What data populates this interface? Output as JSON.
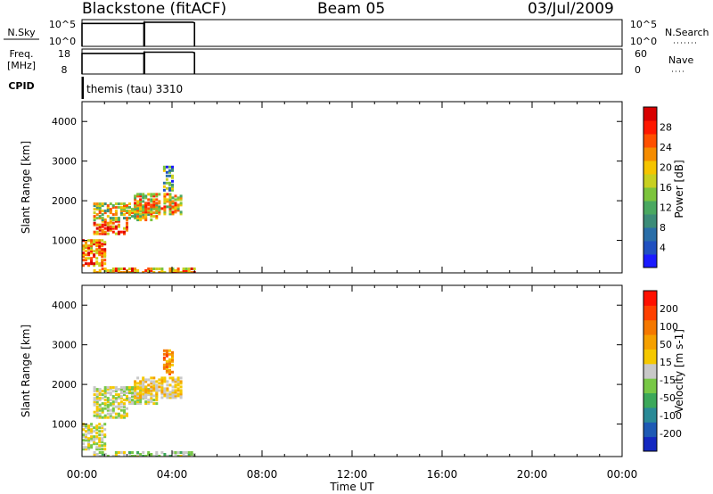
{
  "header": {
    "station": "Blackstone (fitACF)",
    "beam": "Beam 05",
    "date": "03/Jul/2009"
  },
  "chart_data": [
    {
      "type": "line",
      "panel": "noise",
      "left_label": "N.Sky",
      "right_label": "N.Search",
      "left_ticks": [
        "10^5",
        "10^0"
      ],
      "right_ticks": [
        "10^5",
        "10^0"
      ],
      "xlim": [
        0,
        24
      ],
      "coverage_hours": [
        [
          0.0,
          2.75
        ],
        [
          2.78,
          5.0
        ]
      ],
      "level": 0.88
    },
    {
      "type": "line",
      "panel": "frequency",
      "left_label": "Freq.",
      "left_unit": "[MHz]",
      "right_label": "Nave",
      "left_ticks": [
        "18",
        "8"
      ],
      "right_ticks": [
        "60",
        "0"
      ],
      "xlim": [
        0,
        24
      ],
      "coverage_hours": [
        [
          0.0,
          2.75
        ],
        [
          2.78,
          5.0
        ]
      ],
      "level": 0.85
    },
    {
      "type": "table",
      "panel": "cpid",
      "label": "CPID",
      "text": "themis (tau) 3310"
    },
    {
      "type": "heatmap",
      "panel": "power",
      "ylabel": "Slant Range [km]",
      "ylim": [
        180,
        4500
      ],
      "yticks": [
        "1000",
        "2000",
        "3000",
        "4000"
      ],
      "xlim": [
        0,
        24
      ],
      "colorbar": {
        "label": "Power [dB]",
        "ticks": [
          "28",
          "24",
          "20",
          "16",
          "12",
          "8",
          "4"
        ],
        "colors": [
          "#1a1aff",
          "#2050c0",
          "#2a6ea8",
          "#3c8c78",
          "#4aa860",
          "#7cc43c",
          "#c8d020",
          "#f5c400",
          "#f58c00",
          "#ff5000",
          "#ff1800",
          "#d80000"
        ]
      },
      "regions": [
        {
          "t": [
            0.0,
            1.0
          ],
          "r": [
            400,
            1050
          ],
          "level": 0.75
        },
        {
          "t": [
            0.5,
            2.0
          ],
          "r": [
            1200,
            1550
          ],
          "level": 0.8
        },
        {
          "t": [
            0.5,
            3.3
          ],
          "r": [
            1550,
            2000
          ],
          "level": 0.55
        },
        {
          "t": [
            2.3,
            4.4
          ],
          "r": [
            1700,
            2200
          ],
          "level": 0.62
        },
        {
          "t": [
            3.6,
            4.0
          ],
          "r": [
            2300,
            2900
          ],
          "level": 0.35
        },
        {
          "t": [
            0.5,
            5.0
          ],
          "r": [
            180,
            350
          ],
          "level": 0.7
        }
      ]
    },
    {
      "type": "heatmap",
      "panel": "velocity",
      "ylabel": "Slant Range [km]",
      "ylim": [
        180,
        4500
      ],
      "yticks": [
        "1000",
        "2000",
        "3000",
        "4000"
      ],
      "xlim": [
        0,
        24
      ],
      "xticks": [
        "00:00",
        "04:00",
        "08:00",
        "12:00",
        "16:00",
        "20:00",
        "00:00"
      ],
      "xlabel": "Time UT",
      "colorbar": {
        "label": "Velocity [m s-1]",
        "ticks": [
          "200",
          "100",
          "50",
          "15",
          "-15",
          "-50",
          "-100",
          "-200"
        ],
        "colors": [
          "#1428c0",
          "#1e5ab4",
          "#2a8a96",
          "#3ca85a",
          "#78c846",
          "#c8c8c8",
          "#f5c800",
          "#f5a000",
          "#f57800",
          "#ff4000",
          "#ff1000"
        ]
      },
      "regions": [
        {
          "t": [
            0.0,
            1.0
          ],
          "r": [
            400,
            1050
          ],
          "level": 0.5
        },
        {
          "t": [
            0.5,
            2.0
          ],
          "r": [
            1200,
            1550
          ],
          "level": 0.5
        },
        {
          "t": [
            0.5,
            3.3
          ],
          "r": [
            1550,
            2000
          ],
          "level": 0.5
        },
        {
          "t": [
            2.3,
            4.4
          ],
          "r": [
            1700,
            2200
          ],
          "level": 0.58
        },
        {
          "t": [
            3.6,
            4.0
          ],
          "r": [
            2300,
            2900
          ],
          "level": 0.72
        },
        {
          "t": [
            0.5,
            5.0
          ],
          "r": [
            180,
            350
          ],
          "level": 0.45
        }
      ]
    }
  ]
}
